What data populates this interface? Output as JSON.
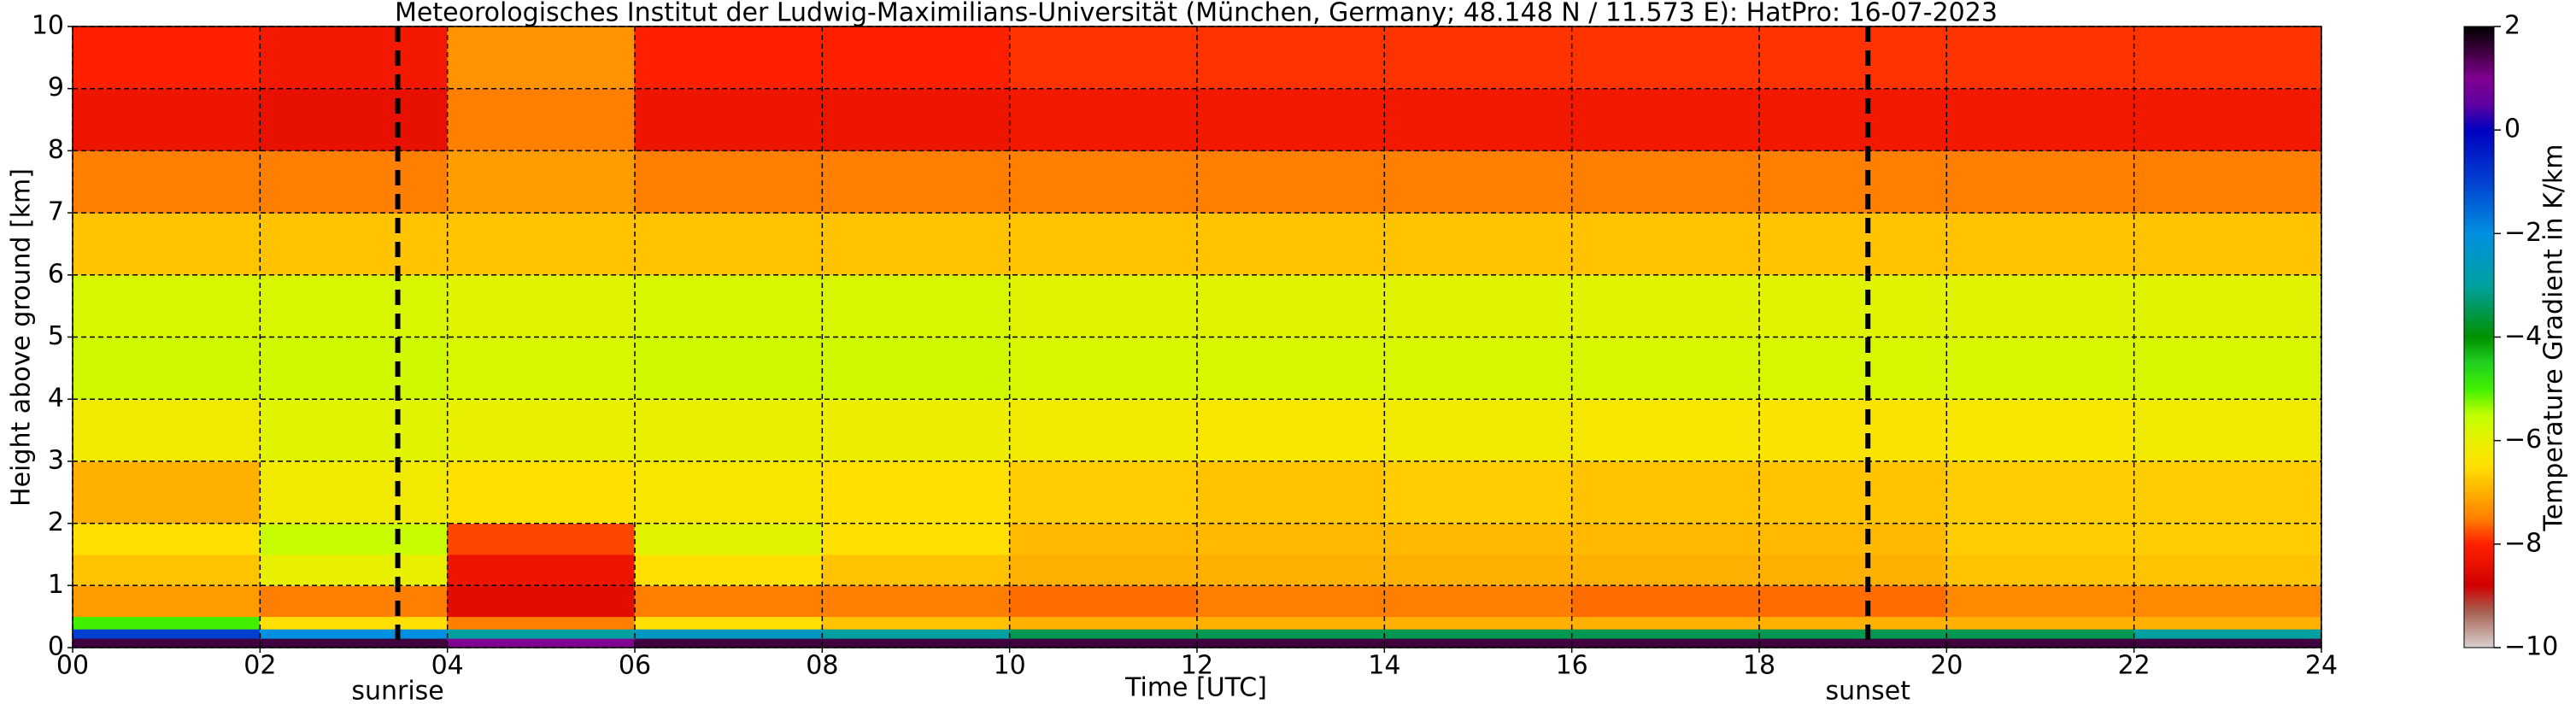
{
  "chart_data": {
    "type": "heatmap",
    "title": "Meteorologisches Institut der Ludwig-Maximilians-Universität (München, Germany; 48.148 N / 11.573 E):    HatPro: 16-07-2023",
    "xlabel": "Time [UTC]",
    "ylabel": "Height above ground [km]",
    "colorbar_label": "Temperature Gradient in K/km",
    "x_edges": [
      0,
      2,
      4,
      6,
      8,
      10,
      12,
      14,
      16,
      18,
      20,
      22,
      24
    ],
    "y_edges": [
      0,
      0.15,
      0.3,
      0.5,
      1,
      1.5,
      2,
      3,
      4,
      5,
      6,
      7,
      8,
      9,
      10
    ],
    "z": [
      [
        1.5,
        1.5,
        1,
        1.5,
        1.5,
        1.5,
        1.5,
        1.5,
        1.5,
        1.5,
        1.5,
        1.5
      ],
      [
        -1,
        -2,
        -3,
        -2.5,
        -3,
        -3.5,
        -3.5,
        -3.5,
        -3.5,
        -3.5,
        -3.5,
        -3
      ],
      [
        -5,
        -6.5,
        -7.5,
        -6.5,
        -6.8,
        -7,
        -7,
        -7,
        -7,
        -7,
        -7,
        -7
      ],
      [
        -7.2,
        -7.5,
        -8.5,
        -7.5,
        -7.5,
        -7.6,
        -7.5,
        -7.5,
        -7.6,
        -7.6,
        -7.4,
        -7.4
      ],
      [
        -6.8,
        -6,
        -8.3,
        -6.5,
        -6.8,
        -7,
        -7,
        -7,
        -7,
        -7,
        -6.8,
        -6.8
      ],
      [
        -6.5,
        -5.6,
        -7.8,
        -5.9,
        -6.5,
        -6.9,
        -6.9,
        -6.9,
        -6.9,
        -6.9,
        -6.7,
        -6.7
      ],
      [
        -7,
        -6.2,
        -6.5,
        -6.3,
        -6.5,
        -6.7,
        -6.8,
        -6.7,
        -6.8,
        -6.8,
        -6.7,
        -6.7
      ],
      [
        -6.2,
        -5.9,
        -6,
        -6,
        -6.1,
        -6.2,
        -6.3,
        -6.2,
        -6.3,
        -6.4,
        -6.3,
        -6.2
      ],
      [
        -5.7,
        -5.7,
        -5.8,
        -5.7,
        -5.7,
        -5.8,
        -5.8,
        -5.8,
        -5.8,
        -5.8,
        -5.8,
        -5.8
      ],
      [
        -5.8,
        -5.8,
        -5.9,
        -5.8,
        -5.8,
        -5.9,
        -5.9,
        -5.9,
        -5.9,
        -5.9,
        -5.9,
        -5.9
      ],
      [
        -6.8,
        -6.8,
        -6.8,
        -6.8,
        -6.8,
        -6.8,
        -6.8,
        -6.8,
        -6.8,
        -6.8,
        -6.8,
        -6.8
      ],
      [
        -7.5,
        -7.5,
        -7.2,
        -7.5,
        -7.5,
        -7.5,
        -7.5,
        -7.5,
        -7.5,
        -7.5,
        -7.5,
        -7.5
      ],
      [
        -8.3,
        -8.4,
        -7.5,
        -8.3,
        -8.3,
        -8.2,
        -8.2,
        -8.2,
        -8.2,
        -8.2,
        -8.2,
        -8.2
      ],
      [
        -8,
        -8.2,
        -7.3,
        -8,
        -8,
        -7.9,
        -7.9,
        -7.9,
        -7.9,
        -7.9,
        -7.9,
        -7.9
      ]
    ],
    "xlim": [
      0,
      24
    ],
    "ylim": [
      0,
      10
    ],
    "clim": [
      -10,
      2
    ],
    "xticks": [
      {
        "value": 0,
        "label": "00"
      },
      {
        "value": 2,
        "label": "02"
      },
      {
        "value": 4,
        "label": "04"
      },
      {
        "value": 6,
        "label": "06"
      },
      {
        "value": 8,
        "label": "08"
      },
      {
        "value": 10,
        "label": "10"
      },
      {
        "value": 12,
        "label": "12"
      },
      {
        "value": 14,
        "label": "14"
      },
      {
        "value": 16,
        "label": "16"
      },
      {
        "value": 18,
        "label": "18"
      },
      {
        "value": 20,
        "label": "20"
      },
      {
        "value": 22,
        "label": "22"
      },
      {
        "value": 24,
        "label": "24"
      }
    ],
    "yticks": [
      0,
      1,
      2,
      3,
      4,
      5,
      6,
      7,
      8,
      9,
      10
    ],
    "cticks": [
      2,
      0,
      {
        "value": -2,
        "label": "−2"
      },
      {
        "value": -4,
        "label": "−4"
      },
      {
        "value": -6,
        "label": "−6"
      },
      {
        "value": -8,
        "label": "−8"
      },
      {
        "value": -10,
        "label": "−10"
      }
    ],
    "colorscale": [
      {
        "value": -10,
        "color": "#d8d0d0"
      },
      {
        "value": -9.3,
        "color": "#a86050"
      },
      {
        "value": -8.8,
        "color": "#d00000"
      },
      {
        "value": -8,
        "color": "#ff2000"
      },
      {
        "value": -7.5,
        "color": "#ff8000"
      },
      {
        "value": -7,
        "color": "#ffb000"
      },
      {
        "value": -6.5,
        "color": "#ffe000"
      },
      {
        "value": -6,
        "color": "#e8f000"
      },
      {
        "value": -5.5,
        "color": "#c0ff00"
      },
      {
        "value": -5,
        "color": "#40f000"
      },
      {
        "value": -4.5,
        "color": "#20d020"
      },
      {
        "value": -4,
        "color": "#009000"
      },
      {
        "value": -3,
        "color": "#00a0a0"
      },
      {
        "value": -2,
        "color": "#0090e0"
      },
      {
        "value": -1,
        "color": "#0040d0"
      },
      {
        "value": 0,
        "color": "#0000c0"
      },
      {
        "value": 0.5,
        "color": "#6000a0"
      },
      {
        "value": 1,
        "color": "#800090"
      },
      {
        "value": 1.5,
        "color": "#400040"
      },
      {
        "value": 2,
        "color": "#000000"
      }
    ],
    "annotations": [
      {
        "text": "sunrise",
        "x": 3.47
      },
      {
        "text": "sunset",
        "x": 19.16
      }
    ],
    "grid": true
  }
}
